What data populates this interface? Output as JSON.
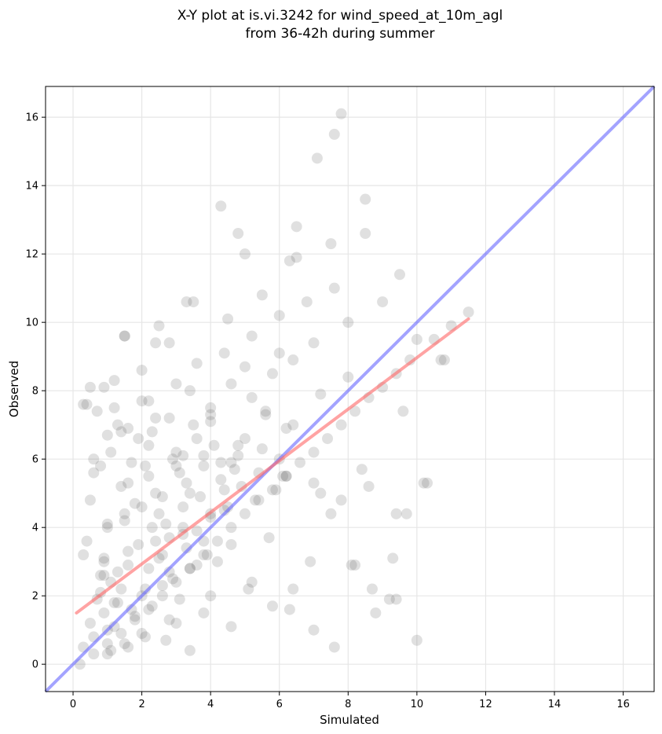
{
  "chart_data": {
    "type": "scatter",
    "title_lines": [
      "X-Y plot at is.vi.3242 for wind_speed_at_10m_agl",
      "from 36-42h during summer"
    ],
    "xlabel": "Simulated",
    "ylabel": "Observed",
    "xlim": [
      -0.8,
      16.9
    ],
    "ylim": [
      -0.8,
      16.9
    ],
    "xticks": [
      "0",
      "2",
      "4",
      "6",
      "8",
      "10",
      "12",
      "14",
      "16"
    ],
    "yticks": [
      "0",
      "2",
      "4",
      "6",
      "8",
      "10",
      "12",
      "14",
      "16"
    ],
    "grid": true,
    "point_color": "#555555",
    "reference_line": {
      "label": "1:1",
      "color": "#6666ff",
      "x": [
        -0.8,
        16.9
      ],
      "y": [
        -0.8,
        16.9
      ]
    },
    "fit_line": {
      "color": "#ff6666",
      "x": [
        0.1,
        11.5
      ],
      "y": [
        1.5,
        10.1
      ]
    },
    "points": {
      "x": [
        0.3,
        0.5,
        0.6,
        0.8,
        0.9,
        1.0,
        1.1,
        1.2,
        1.3,
        1.5,
        1.6,
        1.8,
        2.0,
        2.1,
        2.3,
        2.5,
        2.7,
        2.9,
        3.1,
        3.3,
        0.4,
        0.7,
        0.9,
        1.1,
        1.3,
        1.5,
        1.7,
        1.9,
        2.1,
        2.3,
        2.6,
        2.8,
        3.0,
        3.2,
        3.4,
        3.6,
        3.8,
        4.0,
        4.2,
        4.4,
        0.5,
        0.8,
        1.0,
        1.2,
        1.4,
        1.6,
        1.8,
        2.0,
        2.2,
        2.4,
        2.6,
        2.8,
        3.0,
        3.2,
        3.4,
        3.6,
        3.8,
        4.0,
        4.3,
        4.6,
        0.6,
        0.9,
        1.1,
        1.4,
        1.7,
        2.0,
        2.3,
        2.6,
        2.9,
        3.2,
        3.5,
        3.8,
        4.1,
        4.4,
        4.7,
        5.0,
        5.3,
        5.6,
        5.9,
        6.2,
        0.7,
        1.0,
        1.3,
        1.6,
        1.9,
        2.2,
        2.5,
        2.8,
        3.1,
        3.4,
        3.7,
        4.0,
        4.3,
        4.6,
        4.9,
        5.2,
        5.5,
        5.8,
        6.1,
        6.4,
        0.4,
        0.8,
        1.2,
        1.6,
        2.0,
        2.4,
        2.8,
        3.2,
        3.6,
        4.0,
        4.4,
        4.8,
        5.2,
        5.6,
        6.0,
        6.4,
        6.8,
        7.2,
        7.6,
        8.0,
        0.5,
        1.0,
        1.5,
        2.0,
        2.5,
        3.0,
        3.5,
        4.0,
        4.5,
        5.0,
        5.5,
        6.0,
        6.5,
        7.0,
        7.5,
        8.0,
        8.5,
        9.0,
        9.5,
        10.0,
        1.0,
        1.6,
        2.2,
        2.8,
        3.4,
        4.0,
        4.6,
        5.2,
        5.8,
        6.4,
        7.0,
        7.6,
        8.2,
        8.8,
        9.4,
        10.0,
        0.3,
        0.9,
        1.5,
        2.1,
        2.7,
        3.3,
        3.9,
        4.5,
        5.1,
        5.7,
        6.3,
        6.9,
        7.5,
        8.1,
        8.7,
        9.3,
        0.6,
        1.4,
        2.2,
        3.0,
        3.8,
        4.6,
        5.4,
        6.2,
        7.0,
        7.8,
        8.6,
        9.4,
        10.2,
        1.2,
        2.4,
        3.6,
        4.8,
        6.0,
        7.2,
        8.4,
        9.6,
        10.8,
        0.2,
        0.6,
        1.0,
        1.4,
        1.8,
        2.2,
        2.6,
        3.0,
        3.4,
        3.8,
        4.2,
        4.6,
        5.0,
        5.4,
        5.8,
        6.2,
        6.6,
        7.0,
        7.4,
        7.8,
        8.2,
        8.6,
        9.0,
        9.4,
        9.8,
        10.5,
        4.3,
        6.5,
        7.1,
        7.6,
        7.8,
        8.5,
        6.3,
        5.0,
        4.8,
        3.3,
        2.4,
        1.5,
        0.9,
        0.3,
        11.5,
        11.0,
        10.7,
        10.3,
        9.7,
        9.2
      ],
      "y": [
        0.5,
        1.2,
        0.8,
        2.1,
        1.5,
        0.3,
        2.4,
        1.1,
        1.8,
        0.6,
        2.9,
        1.4,
        0.9,
        2.2,
        1.7,
        3.1,
        0.7,
        2.5,
        1.9,
        3.4,
        3.6,
        1.9,
        3.1,
        0.4,
        2.7,
        4.2,
        1.6,
        3.5,
        0.8,
        4.0,
        2.3,
        3.7,
        1.2,
        4.6,
        2.8,
        3.9,
        1.5,
        4.4,
        3.0,
        5.1,
        4.8,
        2.6,
        4.1,
        1.8,
        5.2,
        3.3,
        4.7,
        2.0,
        5.5,
        3.6,
        4.9,
        2.7,
        5.8,
        3.8,
        5.0,
        2.9,
        6.1,
        4.3,
        5.4,
        3.5,
        5.6,
        3.0,
        6.2,
        2.2,
        5.9,
        4.6,
        6.8,
        3.2,
        6.0,
        4.0,
        7.0,
        3.6,
        6.4,
        4.5,
        5.7,
        6.6,
        4.8,
        7.3,
        5.1,
        6.9,
        7.4,
        4.0,
        7.0,
        5.3,
        6.6,
        7.7,
        4.4,
        7.2,
        5.6,
        8.0,
        4.9,
        7.5,
        5.9,
        8.2,
        5.2,
        7.8,
        6.3,
        8.5,
        5.5,
        8.9,
        7.6,
        5.8,
        8.3,
        6.9,
        8.6,
        5.0,
        9.4,
        6.1,
        8.8,
        7.1,
        9.1,
        6.4,
        9.6,
        7.4,
        10.2,
        7.0,
        10.6,
        7.9,
        11.0,
        8.4,
        8.1,
        6.7,
        9.6,
        7.7,
        9.9,
        8.2,
        10.6,
        7.3,
        10.1,
        8.7,
        10.8,
        9.1,
        11.9,
        9.4,
        12.3,
        10.0,
        12.6,
        10.6,
        11.4,
        9.5,
        1.0,
        0.5,
        2.8,
        1.3,
        0.4,
        2.0,
        1.1,
        2.4,
        1.7,
        2.2,
        1.0,
        0.5,
        2.9,
        1.5,
        1.9,
        0.7,
        3.2,
        2.6,
        4.4,
        5.8,
        4.1,
        5.3,
        3.2,
        4.6,
        2.2,
        3.7,
        1.6,
        3.0,
        4.4,
        2.9,
        2.2,
        3.1,
        6.0,
        6.8,
        6.4,
        6.2,
        5.8,
        5.9,
        5.6,
        5.5,
        5.3,
        4.8,
        5.2,
        4.4,
        5.3,
        7.5,
        7.2,
        6.6,
        6.1,
        6.0,
        5.0,
        5.7,
        7.4,
        8.9,
        0.0,
        0.3,
        0.6,
        0.9,
        1.3,
        1.6,
        2.0,
        2.4,
        2.8,
        3.2,
        3.6,
        4.0,
        4.4,
        4.8,
        5.1,
        5.5,
        5.9,
        6.2,
        6.6,
        7.0,
        7.4,
        7.8,
        8.1,
        8.5,
        8.9,
        9.5,
        13.4,
        12.8,
        14.8,
        15.5,
        16.1,
        13.6,
        11.8,
        12.0,
        12.6,
        10.6,
        9.4,
        9.6,
        8.1,
        7.6,
        10.3,
        9.9,
        8.9,
        5.3,
        4.4,
        1.9
      ]
    }
  }
}
